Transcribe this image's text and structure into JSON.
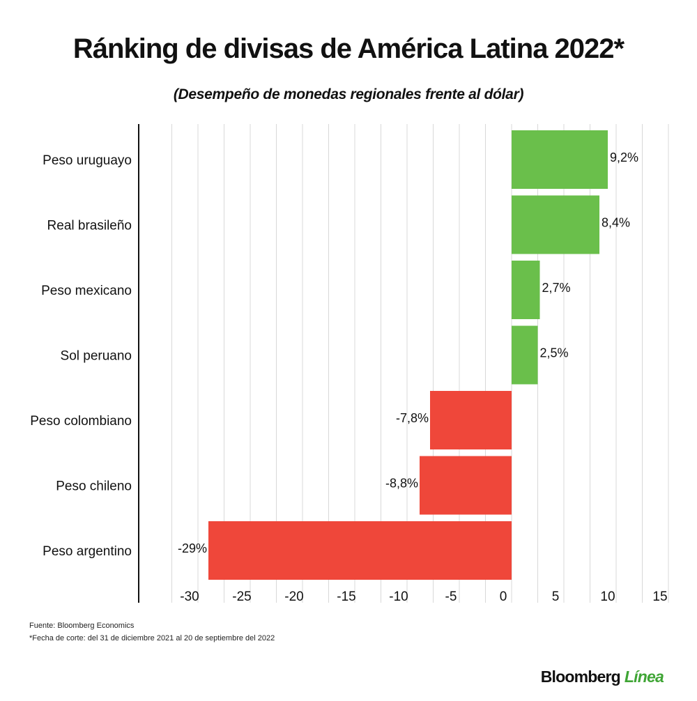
{
  "title": "Ránking de divisas de América Latina 2022*",
  "subtitle": "(Desempeño de monedas regionales frente al dólar)",
  "footer": {
    "source": "Fuente: Bloomberg Economics",
    "note": "*Fecha de corte: del 31 de diciembre 2021 al 20 de septiembre del 2022"
  },
  "brand": {
    "part1": "Bloomberg",
    "part2": "Línea"
  },
  "colors": {
    "positive": "#6abf4b",
    "negative": "#ef473a",
    "grid": "#d8d8d8",
    "axis": "#111111",
    "brand_accent": "#3fa535"
  },
  "chart_data": {
    "type": "bar",
    "orientation": "horizontal",
    "categories": [
      "Peso uruguayo",
      "Real brasileño",
      "Peso mexicano",
      "Sol peruano",
      "Peso colombiano",
      "Peso chileno",
      "Peso argentino"
    ],
    "values": [
      9.2,
      8.4,
      2.7,
      2.5,
      -7.8,
      -8.8,
      -29
    ],
    "data_labels": [
      "9,2%",
      "8,4%",
      "2,7%",
      "2,5%",
      "-7,8%",
      "-8,8%",
      "-29%"
    ],
    "xlim": [
      -35,
      15
    ],
    "xticks": [
      -30,
      -25,
      -20,
      -15,
      -10,
      -5,
      0,
      5,
      10,
      15
    ],
    "xtick_labels": [
      "-30",
      "-25",
      "-20",
      "-15",
      "-10",
      "-5",
      "0",
      "5",
      "10",
      "15"
    ],
    "grid": true
  }
}
